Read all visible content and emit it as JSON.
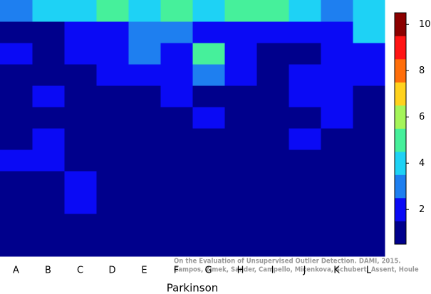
{
  "chart_data": {
    "type": "heatmap",
    "x_label": "Parkinson",
    "categories": [
      "A",
      "B",
      "C",
      "D",
      "E",
      "F",
      "G",
      "H",
      "I",
      "J",
      "K",
      "L"
    ],
    "values": [
      [
        3,
        4,
        4,
        5,
        4,
        5,
        4,
        5,
        5,
        4,
        3,
        4
      ],
      [
        1,
        1,
        2,
        2,
        3,
        3,
        2,
        2,
        2,
        2,
        2,
        4
      ],
      [
        2,
        1,
        2,
        2,
        3,
        2,
        5,
        2,
        1,
        1,
        2,
        2
      ],
      [
        1,
        1,
        1,
        2,
        2,
        2,
        3,
        2,
        1,
        2,
        2,
        2
      ],
      [
        1,
        2,
        1,
        1,
        1,
        2,
        1,
        1,
        1,
        2,
        2,
        1
      ],
      [
        1,
        1,
        1,
        1,
        1,
        1,
        2,
        1,
        1,
        1,
        2,
        1
      ],
      [
        1,
        2,
        1,
        1,
        1,
        1,
        1,
        1,
        1,
        2,
        1,
        1
      ],
      [
        2,
        2,
        1,
        1,
        1,
        1,
        1,
        1,
        1,
        1,
        1,
        1
      ],
      [
        1,
        1,
        2,
        1,
        1,
        1,
        1,
        1,
        1,
        1,
        1,
        1
      ],
      [
        1,
        1,
        2,
        1,
        1,
        1,
        1,
        1,
        1,
        1,
        1,
        1
      ],
      [
        1,
        1,
        1,
        1,
        1,
        1,
        1,
        1,
        1,
        1,
        1,
        1
      ],
      [
        1,
        1,
        1,
        1,
        1,
        1,
        1,
        1,
        1,
        1,
        1,
        1
      ]
    ],
    "colors": [
      "#00008c",
      "#0a0af5",
      "#1e7ff0",
      "#1ed2f5",
      "#46f09b",
      "#a5f55a",
      "#ffd21e",
      "#ff6e0a",
      "#ff1414",
      "#8c0000"
    ],
    "zlim": [
      0.5,
      10.5
    ],
    "zticks": [
      2,
      4,
      6,
      8,
      10
    ],
    "annotations": [
      "On the Evaluation of Unsupervised Outlier Detection. DAMI, 2015.",
      "Campos, Zimek, Sander, Campello, Micenkova, Schubert, Assent, Houle"
    ]
  }
}
